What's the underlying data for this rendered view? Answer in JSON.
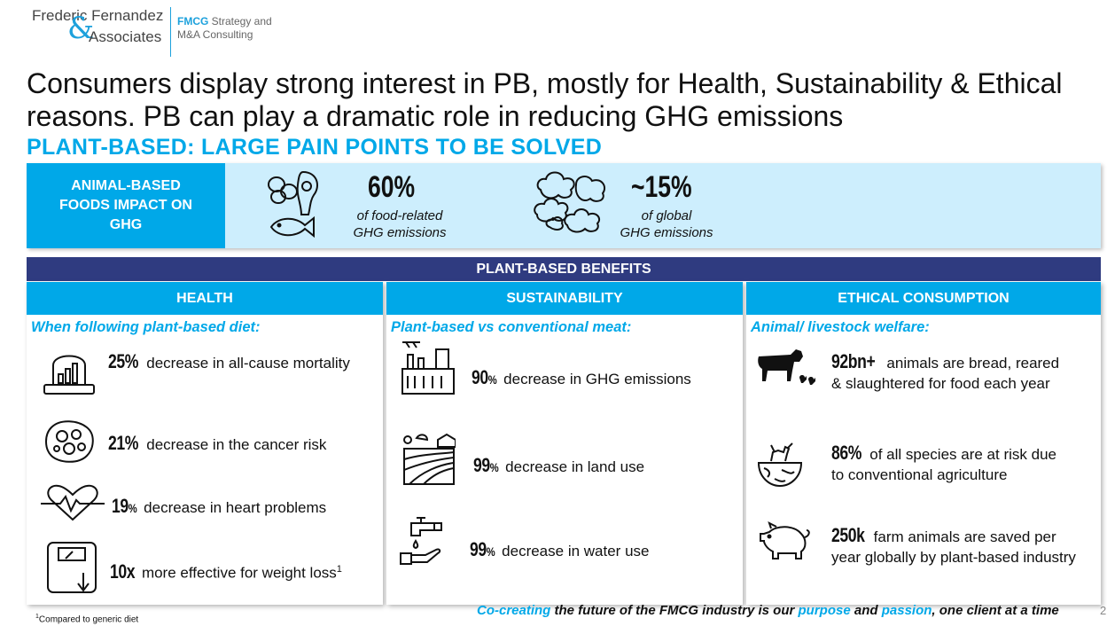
{
  "header": {
    "logo_line1": "Frederic Fernandez",
    "logo_amp": "&",
    "logo_line2": "Associates",
    "tag_line1_brand": "FMCG",
    "tag_line1_rest": " Strategy and",
    "tag_line2": "M&A Consulting"
  },
  "title": "Consumers display strong interest in PB, mostly for Health, Sustainability & Ethical reasons. PB can play a dramatic role in reducing GHG emissions",
  "subtitle": "PLANT-BASED: LARGE PAIN POINTS TO BE SOLVED",
  "impact": {
    "label": "ANIMAL-BASED FOODS IMPACT ON GHG",
    "stat1_value": "60%",
    "stat1_line1": "of food-related",
    "stat1_line2": "GHG emissions",
    "stat2_value": "~15%",
    "stat2_line1": "of global",
    "stat2_line2": "GHG emissions"
  },
  "benefits_title": "PLANT-BASED BENEFITS",
  "health": {
    "heading": "HEALTH",
    "intro": "When following plant-based diet:",
    "items": [
      {
        "num": "25%",
        "text": " decrease in all-cause mortality"
      },
      {
        "num": "21%",
        "text": " decrease in the cancer risk"
      },
      {
        "num": "19",
        "pct": "%",
        "text": " decrease in heart problems"
      },
      {
        "num": "10x",
        "text": " more effective for weight loss",
        "sup": "1"
      }
    ]
  },
  "sustainability": {
    "heading": "SUSTAINABILITY",
    "intro": "Plant-based vs conventional meat:",
    "items": [
      {
        "num": "90",
        "pct": "%",
        "text": " decrease in GHG emissions"
      },
      {
        "num": "99",
        "pct": "%",
        "text": " decrease in land use"
      },
      {
        "num": "99",
        "pct": "%",
        "text": " decrease in water use"
      }
    ]
  },
  "ethical": {
    "heading": "ETHICAL CONSUMPTION",
    "intro": "Animal/ livestock welfare:",
    "items": [
      {
        "num": "92bn+",
        "text": " animals are bread, reared",
        "line2": "& slaughtered for food each year"
      },
      {
        "num": "86%",
        "text": " of all species are at risk due",
        "line2": "to conventional agriculture"
      },
      {
        "num": "250k",
        "text": " farm animals are saved per",
        "line2": "year globally by plant-based industry"
      }
    ]
  },
  "footer": {
    "note_sup": "1",
    "note": "Compared to generic diet",
    "tag_hl1": "Co-creating",
    "tag_mid1": " the future of the FMCG industry is our ",
    "tag_hl2": "purpose",
    "tag_mid2": " and ",
    "tag_hl3": "passion",
    "tag_end": ", one client at a time",
    "page": "2"
  },
  "colors": {
    "accent": "#00a8e8",
    "navy": "#2f3b80",
    "light_band": "#cdeefd"
  }
}
